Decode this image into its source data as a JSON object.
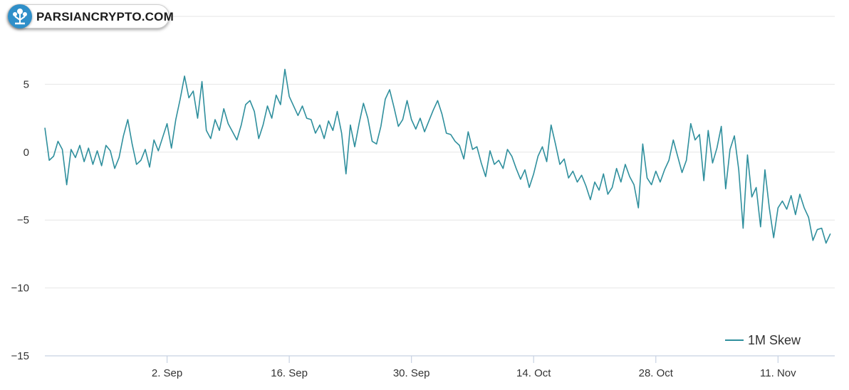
{
  "brand": {
    "logo_text": "PARSIANCRYPTO.COM",
    "accent_color": "#2f8fc9"
  },
  "chart_data": {
    "type": "line",
    "title": "",
    "xlabel": "",
    "ylabel": "",
    "ylim": [
      -15,
      10
    ],
    "yticks": [
      "5",
      "0",
      "−5",
      "−10",
      "−15"
    ],
    "ytick_values": [
      5,
      0,
      -5,
      -10,
      -15
    ],
    "xticks": [
      "2. Sep",
      "16. Sep",
      "30. Sep",
      "14. Oct",
      "28. Oct",
      "11. Nov"
    ],
    "xtick_days": [
      14,
      28,
      42,
      56,
      70,
      84
    ],
    "xrange_days": [
      0,
      90.5
    ],
    "grid": true,
    "legend_position": "bottom-right",
    "series": [
      {
        "name": "1M Skew",
        "color": "#2f8f9d",
        "points": [
          [
            0.0,
            1.8
          ],
          [
            0.5,
            -0.6
          ],
          [
            1.0,
            -0.3
          ],
          [
            1.5,
            0.8
          ],
          [
            2.0,
            0.2
          ],
          [
            2.5,
            -2.4
          ],
          [
            3.0,
            0.2
          ],
          [
            3.5,
            -0.4
          ],
          [
            4.0,
            0.5
          ],
          [
            4.5,
            -0.7
          ],
          [
            5.0,
            0.3
          ],
          [
            5.5,
            -0.9
          ],
          [
            6.0,
            0.1
          ],
          [
            6.5,
            -1.0
          ],
          [
            7.0,
            0.5
          ],
          [
            7.5,
            0.1
          ],
          [
            8.0,
            -1.2
          ],
          [
            8.5,
            -0.4
          ],
          [
            9.0,
            1.2
          ],
          [
            9.5,
            2.4
          ],
          [
            10.0,
            0.6
          ],
          [
            10.5,
            -0.9
          ],
          [
            11.0,
            -0.6
          ],
          [
            11.5,
            0.2
          ],
          [
            12.0,
            -1.1
          ],
          [
            12.5,
            0.9
          ],
          [
            13.0,
            0.1
          ],
          [
            13.5,
            1.1
          ],
          [
            14.0,
            2.1
          ],
          [
            14.5,
            0.3
          ],
          [
            15.0,
            2.4
          ],
          [
            15.5,
            3.9
          ],
          [
            16.0,
            5.6
          ],
          [
            16.5,
            4.0
          ],
          [
            17.0,
            4.5
          ],
          [
            17.5,
            2.5
          ],
          [
            18.0,
            5.2
          ],
          [
            18.5,
            1.6
          ],
          [
            19.0,
            1.0
          ],
          [
            19.5,
            2.4
          ],
          [
            20.0,
            1.6
          ],
          [
            20.5,
            3.2
          ],
          [
            21.0,
            2.1
          ],
          [
            21.5,
            1.5
          ],
          [
            22.0,
            0.9
          ],
          [
            22.5,
            2.0
          ],
          [
            23.0,
            3.5
          ],
          [
            23.5,
            3.8
          ],
          [
            24.0,
            3.0
          ],
          [
            24.5,
            1.0
          ],
          [
            25.0,
            2.0
          ],
          [
            25.5,
            3.4
          ],
          [
            26.0,
            2.5
          ],
          [
            26.5,
            4.2
          ],
          [
            27.0,
            3.5
          ],
          [
            27.5,
            6.1
          ],
          [
            28.0,
            4.1
          ],
          [
            28.5,
            3.4
          ],
          [
            29.0,
            2.7
          ],
          [
            29.5,
            3.4
          ],
          [
            30.0,
            2.5
          ],
          [
            30.5,
            2.4
          ],
          [
            31.0,
            1.4
          ],
          [
            31.5,
            2.0
          ],
          [
            32.0,
            1.0
          ],
          [
            32.5,
            2.3
          ],
          [
            33.0,
            1.6
          ],
          [
            33.5,
            3.0
          ],
          [
            34.0,
            1.4
          ],
          [
            34.5,
            -1.6
          ],
          [
            35.0,
            2.0
          ],
          [
            35.5,
            0.4
          ],
          [
            36.0,
            2.1
          ],
          [
            36.5,
            3.6
          ],
          [
            37.0,
            2.5
          ],
          [
            37.5,
            0.8
          ],
          [
            38.0,
            0.6
          ],
          [
            38.5,
            1.9
          ],
          [
            39.0,
            3.9
          ],
          [
            39.5,
            4.6
          ],
          [
            40.0,
            3.3
          ],
          [
            40.5,
            1.9
          ],
          [
            41.0,
            2.4
          ],
          [
            41.5,
            3.8
          ],
          [
            42.0,
            2.4
          ],
          [
            42.5,
            1.7
          ],
          [
            43.0,
            2.5
          ],
          [
            43.5,
            1.5
          ],
          [
            44.0,
            2.3
          ],
          [
            44.5,
            3.1
          ],
          [
            45.0,
            3.8
          ],
          [
            45.5,
            2.8
          ],
          [
            46.0,
            1.4
          ],
          [
            46.5,
            1.3
          ],
          [
            47.0,
            0.8
          ],
          [
            47.5,
            0.5
          ],
          [
            48.0,
            -0.5
          ],
          [
            48.5,
            1.5
          ],
          [
            49.0,
            0.2
          ],
          [
            49.5,
            0.4
          ],
          [
            50.0,
            -0.8
          ],
          [
            50.5,
            -1.8
          ],
          [
            51.0,
            0.1
          ],
          [
            51.5,
            -0.9
          ],
          [
            52.0,
            -0.6
          ],
          [
            52.5,
            -1.2
          ],
          [
            53.0,
            0.2
          ],
          [
            53.5,
            -0.3
          ],
          [
            54.0,
            -1.2
          ],
          [
            54.5,
            -2.0
          ],
          [
            55.0,
            -1.3
          ],
          [
            55.5,
            -2.6
          ],
          [
            56.0,
            -1.6
          ],
          [
            56.5,
            -0.3
          ],
          [
            57.0,
            0.4
          ],
          [
            57.5,
            -0.7
          ],
          [
            58.0,
            2.0
          ],
          [
            58.5,
            0.6
          ],
          [
            59.0,
            -0.9
          ],
          [
            59.5,
            -0.5
          ],
          [
            60.0,
            -1.9
          ],
          [
            60.5,
            -1.4
          ],
          [
            61.0,
            -2.2
          ],
          [
            61.5,
            -1.7
          ],
          [
            62.0,
            -2.5
          ],
          [
            62.5,
            -3.5
          ],
          [
            63.0,
            -2.2
          ],
          [
            63.5,
            -2.8
          ],
          [
            64.0,
            -1.6
          ],
          [
            64.5,
            -3.1
          ],
          [
            65.0,
            -2.6
          ],
          [
            65.5,
            -1.2
          ],
          [
            66.0,
            -2.2
          ],
          [
            66.5,
            -0.9
          ],
          [
            67.0,
            -1.8
          ],
          [
            67.5,
            -2.4
          ],
          [
            68.0,
            -4.1
          ],
          [
            68.5,
            0.6
          ],
          [
            69.0,
            -1.9
          ],
          [
            69.5,
            -2.4
          ],
          [
            70.0,
            -1.4
          ],
          [
            70.5,
            -2.2
          ],
          [
            71.0,
            -1.3
          ],
          [
            71.5,
            -0.6
          ],
          [
            72.0,
            0.9
          ],
          [
            72.5,
            -0.3
          ],
          [
            73.0,
            -1.5
          ],
          [
            73.5,
            -0.6
          ],
          [
            74.0,
            2.1
          ],
          [
            74.5,
            0.9
          ],
          [
            75.0,
            1.3
          ],
          [
            75.5,
            -2.1
          ],
          [
            76.0,
            1.6
          ],
          [
            76.5,
            -0.8
          ],
          [
            77.0,
            0.3
          ],
          [
            77.5,
            1.9
          ],
          [
            78.0,
            -2.7
          ],
          [
            78.5,
            0.2
          ],
          [
            79.0,
            1.2
          ],
          [
            79.5,
            -1.3
          ],
          [
            80.0,
            -5.6
          ],
          [
            80.5,
            -0.2
          ],
          [
            81.0,
            -3.3
          ],
          [
            81.5,
            -2.6
          ],
          [
            82.0,
            -5.5
          ],
          [
            82.5,
            -1.3
          ],
          [
            83.0,
            -4.1
          ],
          [
            83.5,
            -6.3
          ],
          [
            84.0,
            -4.1
          ],
          [
            84.5,
            -3.6
          ],
          [
            85.0,
            -4.2
          ],
          [
            85.5,
            -3.2
          ],
          [
            86.0,
            -4.6
          ],
          [
            86.5,
            -3.1
          ],
          [
            87.0,
            -4.1
          ],
          [
            87.5,
            -4.8
          ],
          [
            88.0,
            -6.5
          ],
          [
            88.5,
            -5.7
          ],
          [
            89.0,
            -5.6
          ],
          [
            89.5,
            -6.7
          ],
          [
            90.0,
            -6.0
          ]
        ],
        "_note_points": "x in days from chart start, y in skew units"
      }
    ]
  }
}
